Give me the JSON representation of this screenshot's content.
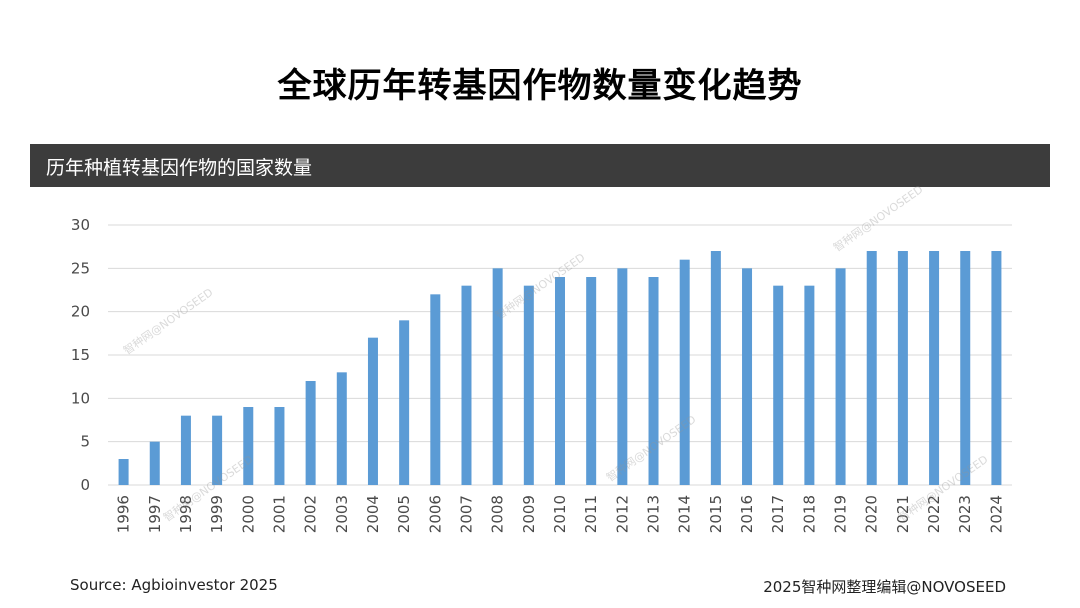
{
  "title": "全球历年转基因作物数量变化趋势",
  "chart_header": "历年种植转基因作物的国家数量",
  "source": "Source: Agbioinvestor 2025",
  "credit": "2025智种网整理编辑@NOVOSEED",
  "watermark": "智种网@NOVOSEED",
  "colors": {
    "bar": "#5b9bd5",
    "header_bg": "#3c3c3c",
    "grid": "#d9d9d9"
  },
  "chart_data": {
    "type": "bar",
    "title": "历年种植转基因作物的国家数量",
    "xlabel": "",
    "ylabel": "",
    "ylim": [
      0,
      30
    ],
    "yticks": [
      0,
      5,
      10,
      15,
      20,
      25,
      30
    ],
    "grid": true,
    "legend": "none",
    "categories": [
      "1996",
      "1997",
      "1998",
      "1999",
      "2000",
      "2001",
      "2002",
      "2003",
      "2004",
      "2005",
      "2006",
      "2007",
      "2008",
      "2009",
      "2010",
      "2011",
      "2012",
      "2013",
      "2014",
      "2015",
      "2016",
      "2017",
      "2018",
      "2019",
      "2020",
      "2021",
      "2022",
      "2023",
      "2024"
    ],
    "values": [
      3,
      5,
      8,
      8,
      9,
      9,
      12,
      13,
      17,
      19,
      22,
      23,
      25,
      23,
      24,
      24,
      25,
      24,
      26,
      27,
      25,
      23,
      23,
      25,
      27,
      27,
      27,
      27,
      27
    ]
  }
}
